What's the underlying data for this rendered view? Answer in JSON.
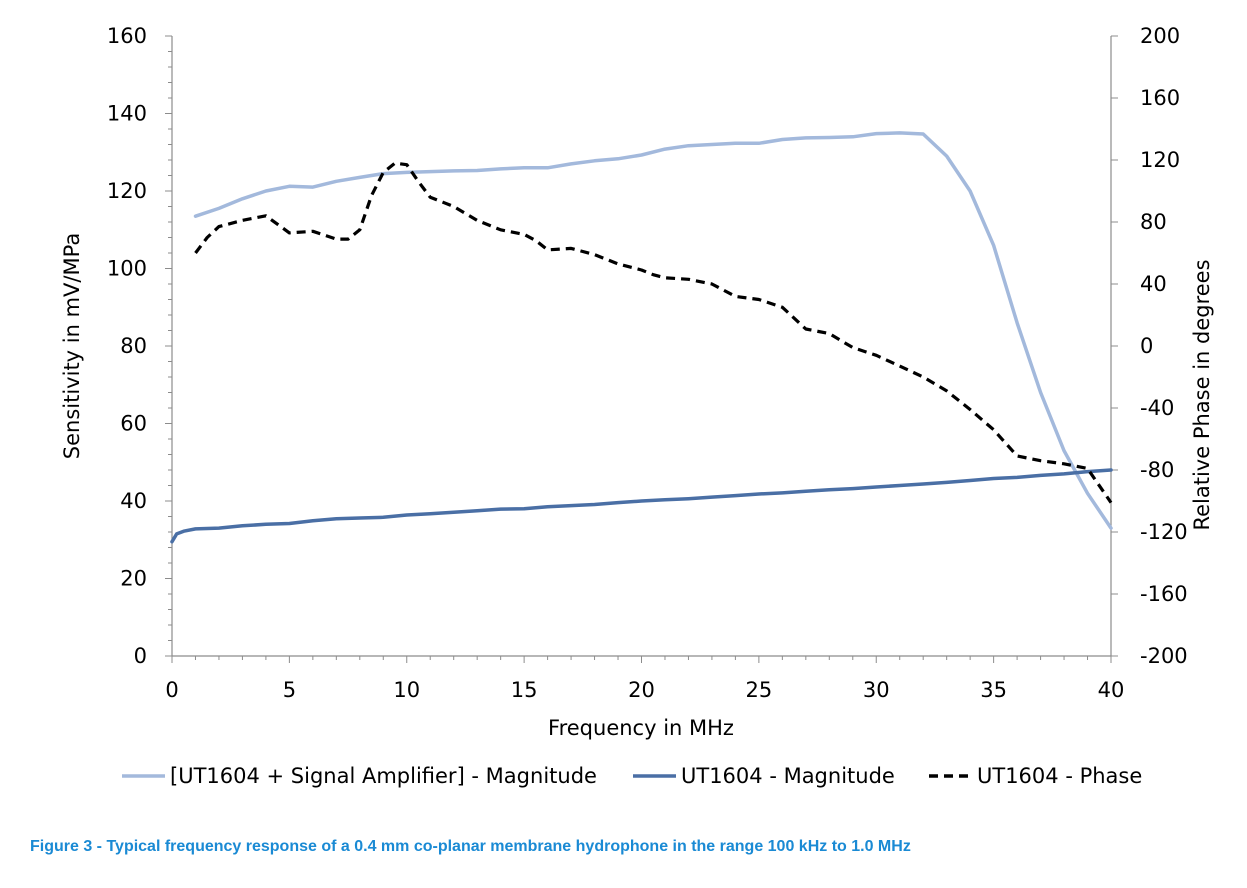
{
  "caption": "Figure 3 - Typical frequency response of a 0.4 mm co-planar membrane hydrophone in the range 100 kHz to 1.0 MHz",
  "chart_data": {
    "type": "line",
    "xlabel": "Frequency in MHz",
    "ylabel": "Sensitivity in mV/MPa",
    "y2label": "Relative Phase in degrees",
    "xlim": [
      0,
      40
    ],
    "ylim": [
      0,
      160
    ],
    "y2lim": [
      -200,
      200
    ],
    "xticks": [
      0,
      5,
      10,
      15,
      20,
      25,
      30,
      35,
      40
    ],
    "yticks": [
      0,
      20,
      40,
      60,
      80,
      100,
      120,
      140,
      160
    ],
    "y2ticks": [
      -200,
      -160,
      -120,
      -80,
      -40,
      0,
      40,
      80,
      120,
      160,
      200
    ],
    "grid": false,
    "legend_position": "bottom",
    "series": [
      {
        "name": "[UT1604 + Signal Amplifier] - Magnitude",
        "axis": "left",
        "color": "#a3b9dc",
        "style": "solid",
        "x": [
          1,
          2,
          3,
          4,
          5,
          6,
          7,
          8,
          9,
          10,
          11,
          12,
          13,
          14,
          15,
          16,
          17,
          18,
          19,
          20,
          21,
          22,
          23,
          24,
          25,
          26,
          27,
          28,
          29,
          30,
          31,
          32,
          33,
          34,
          35,
          36,
          37,
          38,
          39,
          40
        ],
        "y": [
          113.5,
          115.5,
          118,
          120,
          121.2,
          121,
          122.5,
          123.5,
          124.5,
          124.8,
          125,
          125.2,
          125.3,
          125.7,
          126,
          126,
          127,
          127.8,
          128.3,
          129.3,
          130.8,
          131.7,
          132,
          132.3,
          132.3,
          133.3,
          133.7,
          133.8,
          134,
          134.8,
          135,
          134.7,
          129,
          120,
          106,
          86,
          68,
          53,
          42,
          33
        ]
      },
      {
        "name": "UT1604 - Magnitude",
        "axis": "left",
        "color": "#4a6fa5",
        "style": "solid",
        "x": [
          0,
          0.2,
          0.5,
          1,
          2,
          3,
          4,
          5,
          6,
          7,
          8,
          9,
          10,
          11,
          12,
          13,
          14,
          15,
          16,
          17,
          18,
          19,
          20,
          21,
          22,
          23,
          24,
          25,
          26,
          27,
          28,
          29,
          30,
          31,
          32,
          33,
          34,
          35,
          36,
          37,
          38,
          39,
          40
        ],
        "y": [
          29.5,
          31.5,
          32.2,
          32.8,
          33,
          33.6,
          34,
          34.2,
          34.9,
          35.4,
          35.6,
          35.8,
          36.4,
          36.7,
          37.1,
          37.5,
          37.9,
          38,
          38.5,
          38.8,
          39.1,
          39.6,
          40,
          40.3,
          40.6,
          41,
          41.4,
          41.8,
          42.1,
          42.5,
          42.9,
          43.2,
          43.6,
          44,
          44.4,
          44.8,
          45.3,
          45.8,
          46.1,
          46.6,
          47,
          47.6,
          48
        ]
      },
      {
        "name": "UT1604 - Phase",
        "axis": "right",
        "color": "#000000",
        "style": "dashed",
        "x": [
          1,
          1.5,
          2,
          3,
          4,
          5,
          6,
          7,
          7.5,
          8,
          8.5,
          9,
          9.5,
          10,
          10.5,
          11,
          12,
          13,
          14,
          15,
          15.5,
          16,
          17,
          18,
          19,
          20,
          20.5,
          21,
          22,
          23,
          24,
          25,
          26,
          27,
          28,
          29,
          30,
          31,
          32,
          33,
          34,
          35,
          36,
          37,
          38,
          39,
          40
        ],
        "y": [
          60,
          70,
          77,
          81,
          84,
          73,
          74,
          69,
          69,
          75,
          97,
          112,
          118,
          117,
          106,
          96,
          90,
          81,
          75,
          72,
          68,
          62,
          63,
          59,
          53,
          49,
          46,
          44,
          43,
          40,
          32,
          30,
          25,
          11,
          8,
          -1,
          -6,
          -13,
          -20,
          -29,
          -41,
          -54,
          -71,
          -74,
          -76,
          -79,
          -101
        ]
      }
    ]
  }
}
